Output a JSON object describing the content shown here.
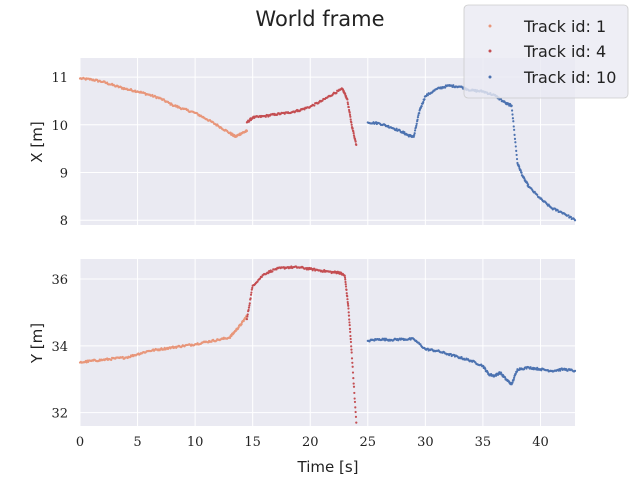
{
  "chart_data": {
    "type": "scatter",
    "title": "World frame",
    "xlabel": "Time [s]",
    "xlim": [
      0,
      43
    ],
    "xticks": [
      "0",
      "5",
      "10",
      "15",
      "20",
      "25",
      "30",
      "35",
      "40"
    ],
    "legend": {
      "placement": "top-right"
    },
    "colors": {
      "1": "#e8967a",
      "4": "#c44e52",
      "10": "#4c72b0",
      "background": "#eaeaf2",
      "grid": "#ffffff"
    },
    "series_names": [
      "Track id: 1",
      "Track id: 4",
      "Track id: 10"
    ],
    "panels": [
      {
        "ylabel": "X [m]",
        "ylim": [
          7.9,
          11.4
        ],
        "yticks": [
          "8",
          "9",
          "10",
          "11"
        ],
        "series": [
          {
            "name": "Track id: 1",
            "x": [
              0,
              1,
              2,
              3,
              4,
              5,
              6,
              7,
              8,
              9,
              10,
              11,
              12,
              13,
              13.5,
              14,
              14.5
            ],
            "y": [
              10.97,
              10.95,
              10.9,
              10.82,
              10.75,
              10.7,
              10.63,
              10.55,
              10.42,
              10.33,
              10.25,
              10.12,
              9.98,
              9.83,
              9.75,
              9.82,
              9.87
            ]
          },
          {
            "name": "Track id: 4",
            "x": [
              14.5,
              15,
              16,
              17,
              18,
              19,
              20,
              21,
              22,
              22.8,
              23.2,
              23.6,
              24
            ],
            "y": [
              10.05,
              10.15,
              10.18,
              10.22,
              10.25,
              10.3,
              10.38,
              10.5,
              10.65,
              10.75,
              10.55,
              10.0,
              9.58
            ]
          },
          {
            "name": "Track id: 10",
            "x": [
              25,
              26,
              27,
              28,
              28.5,
              29,
              29.5,
              30,
              31,
              32,
              33,
              34,
              35,
              36,
              37,
              37.5,
              38,
              38.5,
              39,
              40,
              41,
              42,
              43
            ],
            "y": [
              10.05,
              10.03,
              9.95,
              9.85,
              9.78,
              9.75,
              10.3,
              10.6,
              10.75,
              10.82,
              10.8,
              10.72,
              10.7,
              10.62,
              10.45,
              10.4,
              9.2,
              8.9,
              8.7,
              8.45,
              8.25,
              8.15,
              8.0
            ]
          }
        ]
      },
      {
        "ylabel": "Y [m]",
        "ylim": [
          31.6,
          36.6
        ],
        "yticks": [
          "32",
          "34",
          "36"
        ],
        "series": [
          {
            "name": "Track id: 1",
            "x": [
              0,
              1,
              2,
              3,
              4,
              5,
              6,
              7,
              8,
              9,
              10,
              11,
              12,
              13,
              13.5,
              14,
              14.5
            ],
            "y": [
              33.5,
              33.55,
              33.58,
              33.62,
              33.65,
              33.75,
              33.85,
              33.9,
              33.95,
              34.0,
              34.05,
              34.12,
              34.18,
              34.25,
              34.45,
              34.65,
              34.9
            ]
          },
          {
            "name": "Track id: 4",
            "x": [
              14.5,
              15,
              16,
              17,
              18,
              19,
              20,
              21,
              22,
              22.5,
              23,
              23.3,
              23.6,
              24
            ],
            "y": [
              34.8,
              35.8,
              36.15,
              36.3,
              36.35,
              36.35,
              36.3,
              36.25,
              36.2,
              36.2,
              36.1,
              35.2,
              33.8,
              31.7
            ]
          },
          {
            "name": "Track id: 10",
            "x": [
              25,
              26,
              27,
              28,
              29,
              30,
              31,
              32,
              33,
              34,
              35,
              35.5,
              36,
              36.5,
              37,
              37.5,
              38,
              39,
              40,
              41,
              42,
              43
            ],
            "y": [
              34.15,
              34.2,
              34.18,
              34.2,
              34.2,
              33.9,
              33.85,
              33.75,
              33.65,
              33.55,
              33.4,
              33.15,
              33.1,
              33.2,
              33.0,
              32.85,
              33.3,
              33.35,
              33.3,
              33.25,
              33.3,
              33.25
            ]
          }
        ]
      }
    ]
  }
}
